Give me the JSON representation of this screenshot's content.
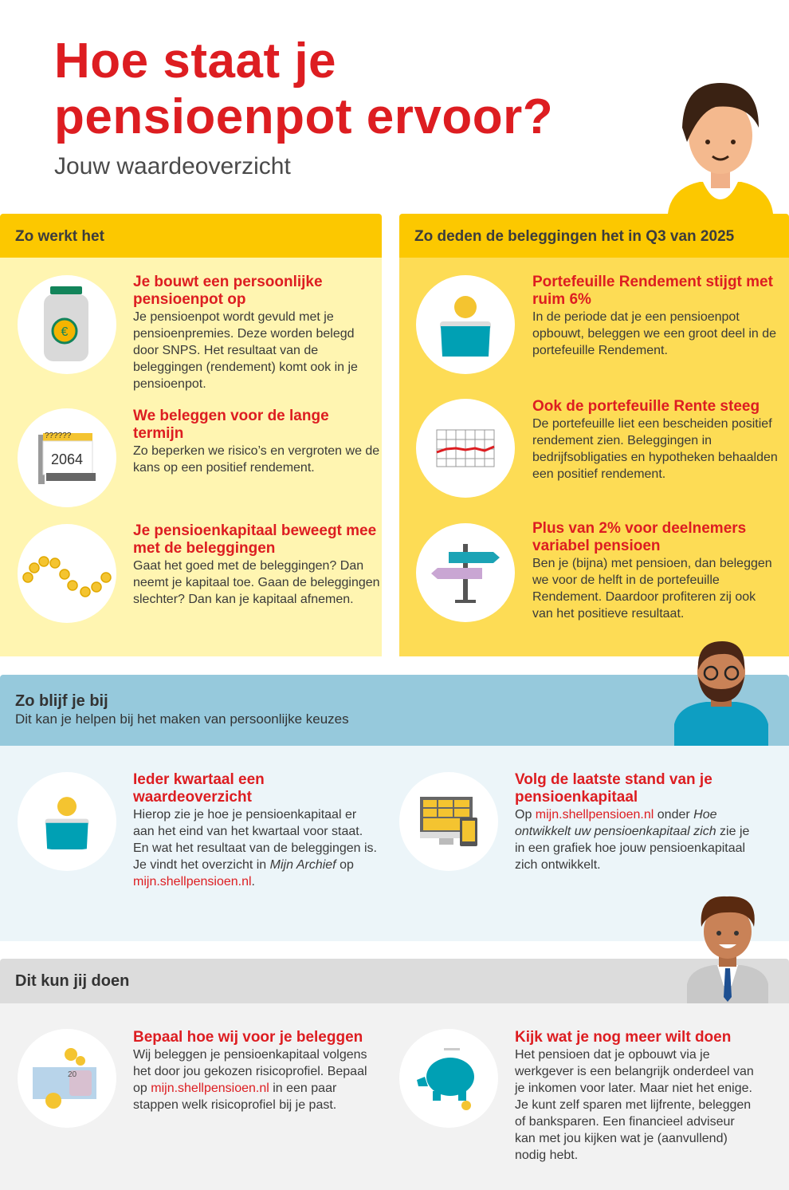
{
  "title": "Hoe staat je pensioenpot ervoor?",
  "subtitle": "Jouw waardeoverzicht",
  "colors": {
    "red": "#dd1d21",
    "yellow_header": "#fcc800",
    "left_body": "#fff5b1",
    "right_body": "#fddc55",
    "blue_band": "#96c9dc",
    "blue_body": "#ecf5f9",
    "gray_band": "#dcdcdc",
    "gray_body": "#f2f2f2",
    "teal": "#00a0b4"
  },
  "left": {
    "header": "Zo werkt het",
    "items": [
      {
        "icon": "jar-with-euro-icon",
        "title": "Je bouwt een persoonlijke pensioenpot op",
        "body": "Je pensioenpot wordt gevuld met je pensioenpremies. Deze worden belegd door SNPS. Het resultaat van de beleggingen (rendement) komt ook in je pensioenpot."
      },
      {
        "icon": "calendar-icon",
        "calendar_text": "2064",
        "calendar_top": "??????",
        "title": "We beleggen voor de lange termijn",
        "body": "Zo beperken we risico’s en vergroten we de kans op een positief rendement."
      },
      {
        "icon": "coins-wave-icon",
        "title": "Je pensioenkapitaal beweegt mee met de beleggingen",
        "body": "Gaat het goed met de beleggingen? Dan neemt je kapitaal toe. Gaan de beleggingen slechter? Dan kan je kapitaal afnemen."
      }
    ]
  },
  "right": {
    "header": "Zo deden de beleggingen het in Q3 van 2025",
    "items": [
      {
        "icon": "purse-icon",
        "title": "Portefeuille Rendement stijgt met ruim 6%",
        "body": "In de periode dat je een pensioenpot opbouwt, beleggen we een groot deel in de portefeuille Rendement."
      },
      {
        "icon": "line-chart-icon",
        "title": "Ook de portefeuille Rente steeg",
        "body": "De portefeuille liet een bescheiden positief rendement zien. Beleggingen in bedrijfsobligaties en hypotheken behaalden een positief rendement."
      },
      {
        "icon": "signpost-icon",
        "title": "Plus van 2% voor deelnemers variabel pensioen",
        "body": "Ben je (bijna) met pensioen, dan beleggen we voor de helft in de portefeuille Rendement. Daardoor profiteren zij ook van het positieve resultaat."
      }
    ]
  },
  "stay": {
    "header": "Zo blijf je bij",
    "subheader": "Dit kan je helpen bij het maken van persoonlijke keuzes",
    "item1": {
      "title": "Ieder kwartaal een waardeoverzicht",
      "body1": "Hierop zie je hoe je pensioenkapitaal er aan het eind van het kwartaal voor staat. En wat het resultaat van de beleggingen is. Je vindt het overzicht in ",
      "em": "Mijn Archief",
      "body2": " op ",
      "link": "mijn.shellpensioen.nl",
      "end": "."
    },
    "item2": {
      "title": "Volg de laatste stand van je pensioenkapitaal",
      "body1": "Op ",
      "link": "mijn.shellpensioen.nl",
      "body2": " onder ",
      "em": "Hoe ontwikkelt uw pensioenkapitaal zich",
      "body3": " zie je in een grafiek hoe jouw pensioenkapitaal zich ontwikkelt."
    }
  },
  "do": {
    "header": "Dit kun jij doen",
    "item1": {
      "title": "Bepaal hoe wij voor je beleggen",
      "body1": "Wij beleggen je pensioenkapitaal volgens het door jou gekozen risicoprofiel. Bepaal op ",
      "link": "mijn.shellpensioen.nl",
      "body2": " in een paar stappen welk risicoprofiel bij je past.",
      "banknote": "20"
    },
    "item2": {
      "title": "Kijk wat je nog meer wilt doen",
      "body": "Het pensioen dat je opbouwt via je werkgever is een belangrijk onderdeel van je inkomen voor later. Maar niet het enige. Je kunt zelf sparen met lijfrente, beleggen of banksparen. Een financieel adviseur kan met jou kijken wat je (aanvullend) nodig hebt."
    }
  }
}
